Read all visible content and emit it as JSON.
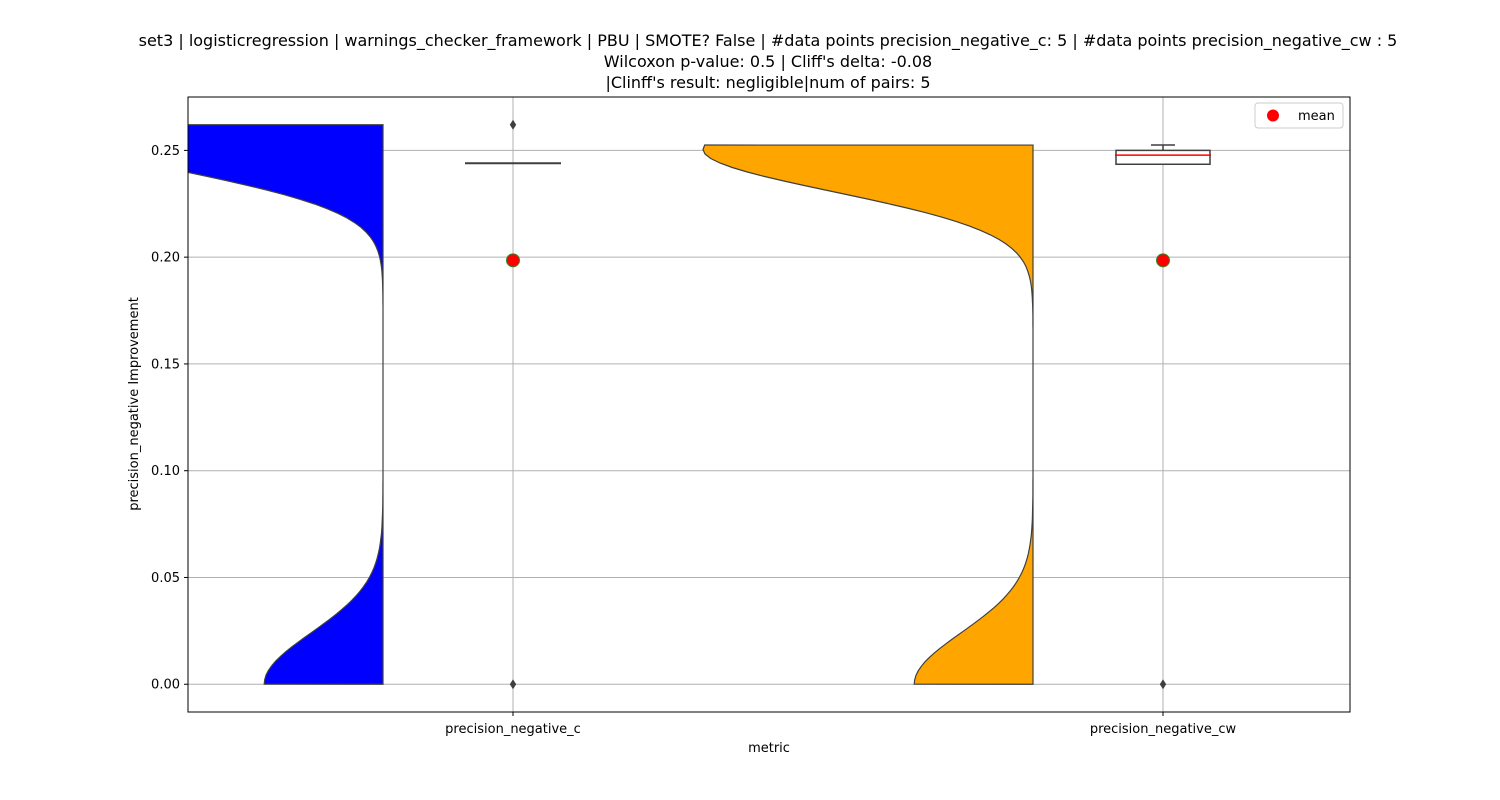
{
  "chart_data": {
    "type": "violin",
    "title_lines": [
      "set3 | logisticregression | warnings_checker_framework | PBU | SMOTE? False | #data points precision_negative_c: 5 | #data points precision_negative_cw : 5",
      "Wilcoxon p-value: 0.5 | Cliff's delta: -0.08",
      "|Clinff's result: negligible|num of pairs: 5"
    ],
    "xlabel": "metric",
    "ylabel": "precision_negative Improvement",
    "categories": [
      "precision_negative_c",
      "precision_negative_cw"
    ],
    "ylim": [
      -0.013,
      0.275
    ],
    "yticks": [
      0.0,
      0.05,
      0.1,
      0.15,
      0.2,
      0.25
    ],
    "ytick_labels": [
      "0.00",
      "0.05",
      "0.10",
      "0.15",
      "0.20",
      "0.25"
    ],
    "grid": true,
    "legend": {
      "placement": "top-right",
      "entries": [
        {
          "label": "mean",
          "color": "#ff0000"
        }
      ]
    },
    "series": [
      {
        "category": "precision_negative_c",
        "color": "#0000ff",
        "violin_range": [
          0.0,
          0.262
        ],
        "box": {
          "q1": 0.244,
          "median": 0.244,
          "q3": 0.244,
          "whisker_low": 0.244,
          "whisker_high": 0.244
        },
        "outliers": [
          0.262,
          0.0
        ],
        "mean": 0.1985
      },
      {
        "category": "precision_negative_cw",
        "color": "#ffa500",
        "violin_range": [
          0.0,
          0.2525
        ],
        "box": {
          "q1": 0.2435,
          "median": 0.2478,
          "q3": 0.25,
          "whisker_low": 0.2435,
          "whisker_high": 0.2525
        },
        "outliers": [
          0.0
        ],
        "mean": 0.1985
      }
    ]
  }
}
